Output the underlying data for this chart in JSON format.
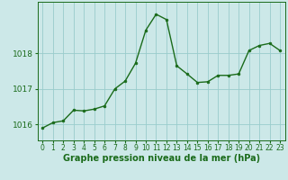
{
  "x": [
    0,
    1,
    2,
    3,
    4,
    5,
    6,
    7,
    8,
    9,
    10,
    11,
    12,
    13,
    14,
    15,
    16,
    17,
    18,
    19,
    20,
    21,
    22,
    23
  ],
  "y": [
    1015.9,
    1016.05,
    1016.1,
    1016.4,
    1016.38,
    1016.43,
    1016.52,
    1017.0,
    1017.22,
    1017.72,
    1018.65,
    1019.1,
    1018.95,
    1017.65,
    1017.42,
    1017.18,
    1017.2,
    1017.38,
    1017.38,
    1017.42,
    1018.08,
    1018.22,
    1018.28,
    1018.08
  ],
  "line_color": "#1a6b1a",
  "marker_color": "#1a6b1a",
  "bg_color": "#cce8e8",
  "grid_color": "#99cccc",
  "axis_color": "#1a6b1a",
  "xlabel": "Graphe pression niveau de la mer (hPa)",
  "yticks": [
    1016,
    1017,
    1018
  ],
  "ylim": [
    1015.55,
    1019.45
  ],
  "xlim": [
    -0.5,
    23.5
  ],
  "xtick_labels": [
    "0",
    "1",
    "2",
    "3",
    "4",
    "5",
    "6",
    "7",
    "8",
    "9",
    "10",
    "11",
    "12",
    "13",
    "14",
    "15",
    "16",
    "17",
    "18",
    "19",
    "20",
    "21",
    "22",
    "23"
  ],
  "xlabel_fontsize": 7,
  "ytick_fontsize": 6.5,
  "xtick_fontsize": 5.5
}
